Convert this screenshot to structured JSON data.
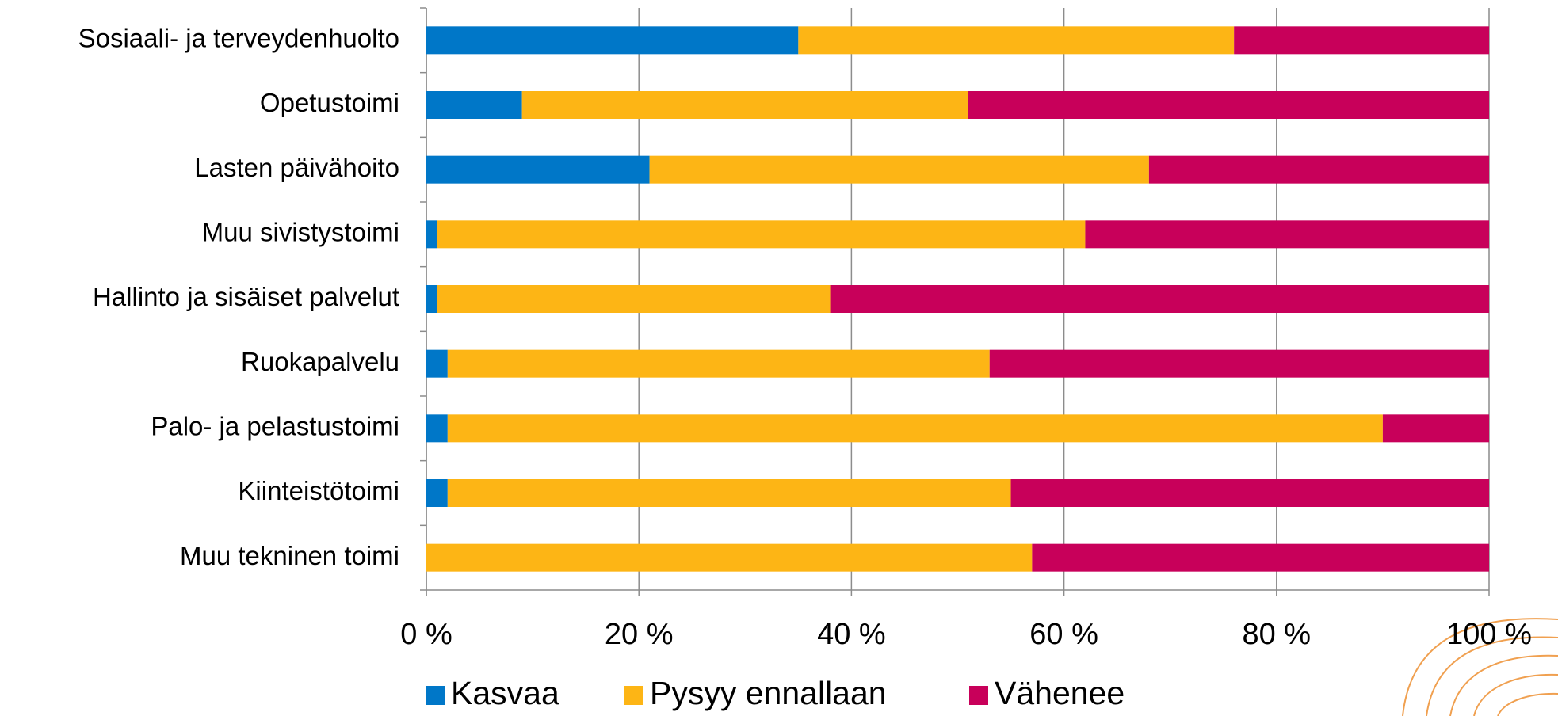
{
  "chart_data": {
    "type": "stacked_barh",
    "categories": [
      "Sosiaali- ja terveydenhuolto",
      "Opetustoimi",
      "Lasten päivähoito",
      "Muu sivistystoimi",
      "Hallinto ja sisäiset palvelut",
      "Ruokapalvelu",
      "Palo- ja pelastustoimi",
      "Kiinteistötoimi",
      "Muu tekninen toimi"
    ],
    "series": [
      {
        "name": "Kasvaa",
        "color": "#0077c8",
        "values": [
          35,
          9,
          21,
          1,
          1,
          2,
          2,
          2,
          0
        ]
      },
      {
        "name": "Pysyy ennallaan",
        "color": "#fdb515",
        "values": [
          41,
          42,
          47,
          61,
          37,
          51,
          88,
          53,
          57
        ]
      },
      {
        "name": "Vähenee",
        "color": "#c8005a",
        "values": [
          24,
          49,
          32,
          38,
          62,
          47,
          10,
          45,
          43
        ]
      }
    ],
    "xlim": [
      0,
      100
    ],
    "xticks": [
      {
        "value": 0,
        "label": "0 %"
      },
      {
        "value": 20,
        "label": "20 %"
      },
      {
        "value": 40,
        "label": "40 %"
      },
      {
        "value": 60,
        "label": "60 %"
      },
      {
        "value": 80,
        "label": "80 %"
      },
      {
        "value": 100,
        "label": "100 %"
      }
    ],
    "grid": true,
    "legend": "bottom"
  }
}
